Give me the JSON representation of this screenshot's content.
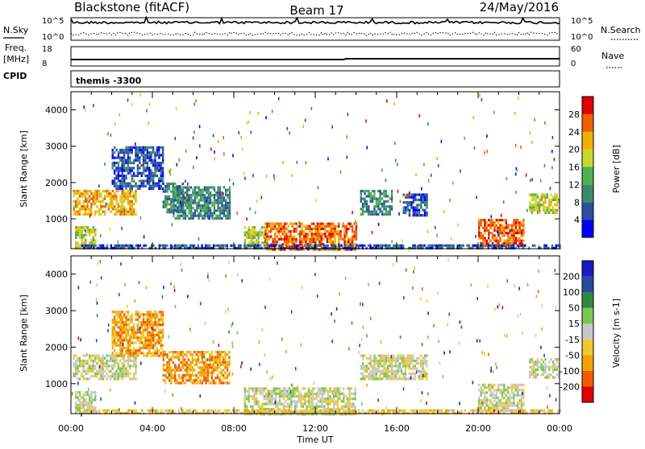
{
  "header": {
    "station": "Blackstone (fitACF)",
    "beam": "Beam 17",
    "date": "24/May/2016"
  },
  "noise_panel": {
    "left_label": "N.Sky",
    "right_label": "N.Search",
    "left_ticks": [
      "10^5",
      "10^0"
    ],
    "right_ticks": [
      "10^5",
      "10^0"
    ]
  },
  "freq_panel": {
    "left_label": "Freq.",
    "left_unit": "[MHz]",
    "right_label": "Nave",
    "left_ticks": [
      "18",
      "8"
    ],
    "right_ticks": [
      "60",
      "0"
    ]
  },
  "cpid_panel": {
    "label": "CPID",
    "value": "themis -3300"
  },
  "colors": {
    "power": [
      "#0000ff",
      "#2c4fa0",
      "#3b8a6e",
      "#4fb04f",
      "#c8d830",
      "#f0b000",
      "#f06000",
      "#e00000"
    ],
    "velocity": [
      "#e00000",
      "#f05a00",
      "#f0a000",
      "#f0c830",
      "#c8c8c8",
      "#7ac850",
      "#2d8a3a",
      "#2a4aa0",
      "#1a1ac8"
    ]
  },
  "chart_data": [
    {
      "type": "heatmap",
      "name": "power",
      "ylabel": "Slant Range [km]",
      "xlim": [
        0,
        24
      ],
      "ylim": [
        180,
        4500
      ],
      "yticks": [
        1000,
        2000,
        3000,
        4000
      ],
      "colorbar_label": "Power [dB]",
      "colorbar_ticks": [
        "4",
        "8",
        "12",
        "16",
        "20",
        "24",
        "28"
      ],
      "regions": [
        {
          "t0": 0.1,
          "t1": 3.2,
          "r0": 1150,
          "r1": 1800,
          "level": 5
        },
        {
          "t0": 0.2,
          "t1": 1.2,
          "r0": 220,
          "r1": 800,
          "level": 4
        },
        {
          "t0": 2.0,
          "t1": 4.5,
          "r0": 1800,
          "r1": 3000,
          "level": 1
        },
        {
          "t0": 4.5,
          "t1": 5.5,
          "r0": 1200,
          "r1": 2000,
          "level": 2
        },
        {
          "t0": 5.0,
          "t1": 7.8,
          "r0": 1000,
          "r1": 1900,
          "level": 2
        },
        {
          "t0": 8.5,
          "t1": 9.6,
          "r0": 200,
          "r1": 800,
          "level": 4
        },
        {
          "t0": 9.5,
          "t1": 14.0,
          "r0": 180,
          "r1": 900,
          "level": 6
        },
        {
          "t0": 14.2,
          "t1": 15.8,
          "r0": 1100,
          "r1": 1800,
          "level": 2
        },
        {
          "t0": 16.3,
          "t1": 17.5,
          "r0": 1100,
          "r1": 1700,
          "level": 1
        },
        {
          "t0": 20.0,
          "t1": 22.2,
          "r0": 250,
          "r1": 1000,
          "level": 6
        },
        {
          "t0": 22.5,
          "t1": 24.0,
          "r0": 1200,
          "r1": 1700,
          "level": 4
        },
        {
          "t0": 0.5,
          "t1": 24.0,
          "r0": 180,
          "r1": 300,
          "level": 1
        }
      ]
    },
    {
      "type": "heatmap",
      "name": "velocity",
      "ylabel": "Slant Range [km]",
      "xlabel": "Time UT",
      "xlim": [
        0,
        24
      ],
      "ylim": [
        180,
        4500
      ],
      "yticks": [
        1000,
        2000,
        3000,
        4000
      ],
      "xticks": [
        "00:00",
        "04:00",
        "08:00",
        "12:00",
        "16:00",
        "20:00",
        "00:00"
      ],
      "colorbar_label": "Velocity [m s-1]",
      "colorbar_ticks": [
        "-200",
        "-100",
        "-50",
        "-15",
        "15",
        "50",
        "100",
        "200"
      ],
      "regions": [
        {
          "t0": 0.1,
          "t1": 3.2,
          "r0": 1150,
          "r1": 1800,
          "level": 4
        },
        {
          "t0": 0.2,
          "t1": 1.2,
          "r0": 220,
          "r1": 800,
          "level": 4
        },
        {
          "t0": 2.0,
          "t1": 4.5,
          "r0": 1800,
          "r1": 3000,
          "level": 2
        },
        {
          "t0": 4.5,
          "t1": 7.8,
          "r0": 1000,
          "r1": 1900,
          "level": 2
        },
        {
          "t0": 8.5,
          "t1": 14.0,
          "r0": 180,
          "r1": 900,
          "level": 4
        },
        {
          "t0": 14.2,
          "t1": 17.5,
          "r0": 1100,
          "r1": 1800,
          "level": 4
        },
        {
          "t0": 20.0,
          "t1": 22.2,
          "r0": 250,
          "r1": 1000,
          "level": 4
        },
        {
          "t0": 22.5,
          "t1": 24.0,
          "r0": 1200,
          "r1": 1700,
          "level": 4
        },
        {
          "t0": 0.5,
          "t1": 24.0,
          "r0": 180,
          "r1": 300,
          "level": 3
        }
      ]
    }
  ]
}
